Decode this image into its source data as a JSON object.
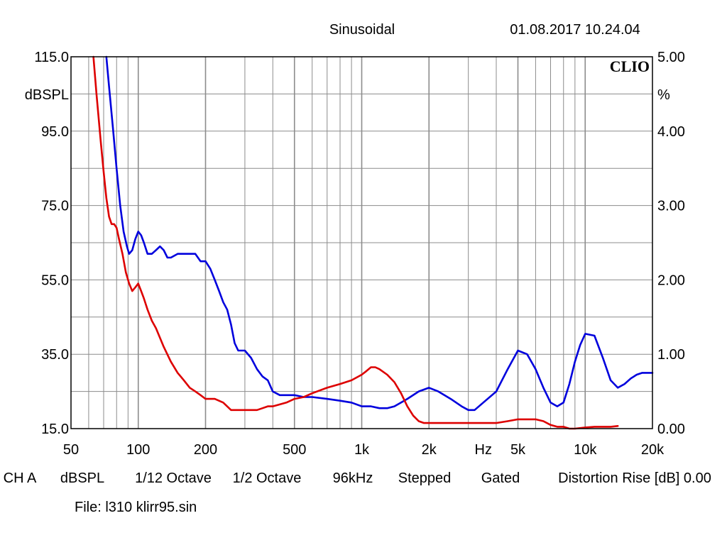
{
  "header": {
    "mode": "Sinusoidal",
    "datetime": "01.08.2017 10.24.04",
    "logo": "CLIO"
  },
  "footer": {
    "channel": "CH A",
    "unit": "dBSPL",
    "smoothing": "1/12 Octave",
    "resolution": "1/2 Octave",
    "sample_rate": "96kHz",
    "sweep": "Stepped",
    "gating": "Gated",
    "distortion_label": "Distortion Rise [dB] 0.00",
    "file": "File: l310 klirr95.sin"
  },
  "colors": {
    "series_blue": "#0000dd",
    "series_red": "#dd0000",
    "grid": "#8c8c8c",
    "frame": "#000000"
  },
  "chart_data": {
    "type": "line",
    "title": "",
    "x_scale": "log",
    "xlim": [
      50,
      20000
    ],
    "ylabel_left": "dBSPL",
    "ylabel_right": "%",
    "ylim_left": [
      15,
      115
    ],
    "ylim_right": [
      0,
      5
    ],
    "grid": true,
    "x_tick_labels": [
      {
        "value": 50,
        "label": "50"
      },
      {
        "value": 100,
        "label": "100"
      },
      {
        "value": 200,
        "label": "200"
      },
      {
        "value": 500,
        "label": "500"
      },
      {
        "value": 1000,
        "label": "1k"
      },
      {
        "value": 2000,
        "label": "2k"
      },
      {
        "value": 3500,
        "label": "Hz"
      },
      {
        "value": 5000,
        "label": "5k"
      },
      {
        "value": 10000,
        "label": "10k"
      },
      {
        "value": 20000,
        "label": "20k"
      }
    ],
    "y_left_ticks": [
      {
        "value": 115,
        "label": "115.0"
      },
      {
        "value": 95,
        "label": "95.0"
      },
      {
        "value": 75,
        "label": "75.0"
      },
      {
        "value": 55,
        "label": "55.0"
      },
      {
        "value": 35,
        "label": "35.0"
      },
      {
        "value": 15,
        "label": "15.0"
      }
    ],
    "y_right_ticks": [
      {
        "value": 5,
        "label": "5.00"
      },
      {
        "value": 4,
        "label": "4.00"
      },
      {
        "value": 3,
        "label": "3.00"
      },
      {
        "value": 2,
        "label": "2.00"
      },
      {
        "value": 1,
        "label": "1.00"
      },
      {
        "value": 0,
        "label": "0.00"
      }
    ],
    "series": [
      {
        "color": "#0000dd",
        "axis": "left",
        "x": [
          72,
          74,
          77,
          80,
          83,
          86,
          89,
          91,
          94,
          97,
          100,
          103,
          106,
          110,
          115,
          120,
          125,
          130,
          135,
          140,
          150,
          160,
          170,
          180,
          190,
          200,
          210,
          220,
          230,
          240,
          250,
          260,
          270,
          280,
          290,
          300,
          320,
          340,
          360,
          380,
          400,
          430,
          460,
          500,
          550,
          600,
          700,
          800,
          900,
          1000,
          1100,
          1200,
          1300,
          1400,
          1500,
          1600,
          1800,
          2000,
          2200,
          2500,
          2800,
          3000,
          3200,
          3500,
          4000,
          4500,
          5000,
          5500,
          6000,
          6500,
          7000,
          7500,
          8000,
          8500,
          9000,
          9500,
          10000,
          11000,
          12000,
          13000,
          14000,
          15000,
          16000,
          17000,
          18000,
          20000
        ],
        "y": [
          115,
          107,
          96,
          85,
          75,
          68,
          64,
          62,
          63,
          66,
          68,
          67,
          65,
          62,
          62,
          63,
          64,
          63,
          61,
          61,
          62,
          62,
          62,
          62,
          60,
          60,
          58,
          55,
          52,
          49,
          47,
          43,
          38,
          36,
          36,
          36,
          34,
          31,
          29,
          28,
          25,
          24,
          24,
          24,
          23.5,
          23.5,
          23,
          22.5,
          22,
          21,
          21,
          20.5,
          20.5,
          21,
          22,
          23,
          25,
          26,
          25,
          23,
          21,
          20,
          20,
          22,
          25,
          31,
          36,
          35,
          31,
          26,
          22,
          21,
          22,
          27,
          33,
          37.5,
          40.5,
          40,
          34,
          28,
          26,
          27,
          28.5,
          29.5,
          30,
          30
        ]
      },
      {
        "color": "#dd0000",
        "axis": "left",
        "x": [
          63,
          65,
          68,
          70,
          72,
          74,
          76,
          78,
          80,
          82,
          85,
          88,
          91,
          94,
          97,
          100,
          103,
          106,
          110,
          115,
          120,
          130,
          140,
          150,
          160,
          170,
          180,
          190,
          200,
          210,
          220,
          240,
          260,
          280,
          300,
          320,
          340,
          360,
          380,
          400,
          430,
          460,
          500,
          550,
          600,
          700,
          800,
          900,
          1000,
          1050,
          1100,
          1150,
          1200,
          1300,
          1400,
          1500,
          1600,
          1700,
          1800,
          1900,
          2000,
          2200,
          2500,
          3000,
          3500,
          4000,
          4500,
          5000,
          5500,
          6000,
          6500,
          7000,
          7500,
          8000,
          8500,
          9000,
          10000,
          11000,
          12000,
          13000,
          14000
        ],
        "y": [
          115,
          105,
          92,
          84,
          77,
          72,
          70,
          70,
          69,
          66,
          62,
          57,
          54,
          52,
          53,
          54,
          52,
          50,
          47,
          44,
          42,
          37,
          33,
          30,
          28,
          26,
          25,
          24,
          23,
          23,
          23,
          22,
          20,
          20,
          20,
          20,
          20,
          20.5,
          21,
          21,
          21.5,
          22,
          23,
          23.5,
          24.5,
          26,
          27,
          28,
          29.5,
          30.5,
          31.5,
          31.5,
          31,
          29.5,
          27.5,
          24.5,
          21,
          18.5,
          17,
          16.5,
          16.5,
          16.5,
          16.5,
          16.5,
          16.5,
          16.5,
          17,
          17.5,
          17.5,
          17.5,
          17,
          16,
          15.5,
          15.5,
          15,
          15,
          15.3,
          15.5,
          15.5,
          15.5,
          15.7
        ]
      }
    ]
  }
}
